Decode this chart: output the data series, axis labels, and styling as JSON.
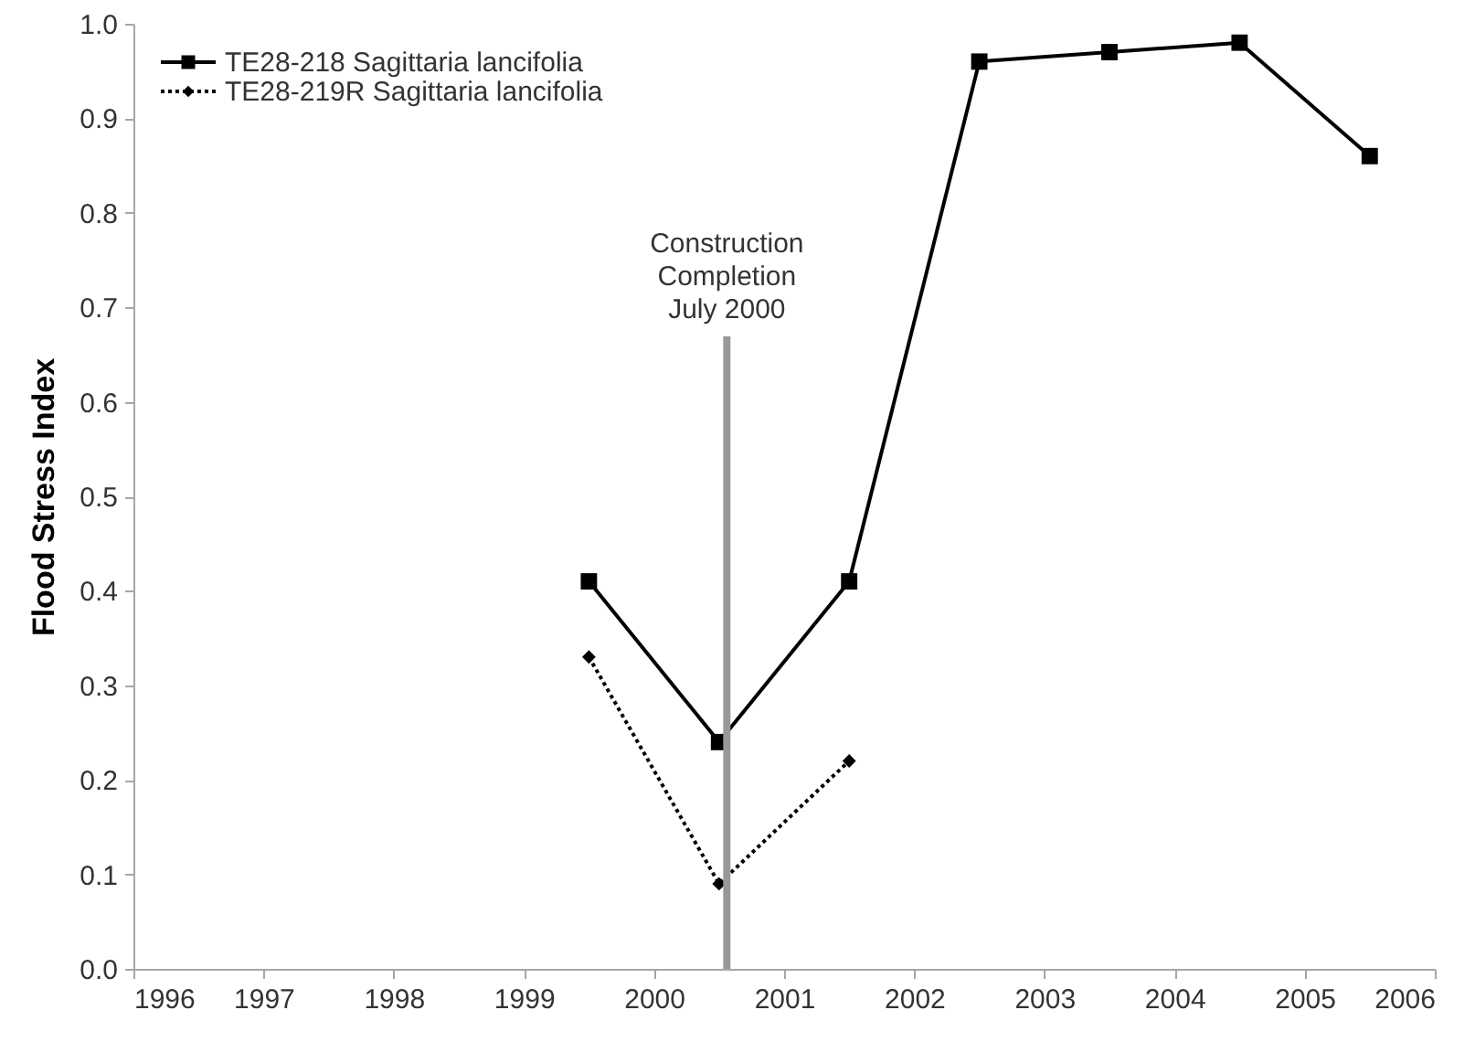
{
  "chart_data": {
    "type": "line",
    "ylabel": "Flood Stress Index",
    "x": [
      1999.5,
      2000.5,
      2001.5,
      2002.5,
      2003.5,
      2004.5,
      2005.5
    ],
    "series": [
      {
        "name": "TE28-218 Sagittaria lancifolia",
        "color": "#000000",
        "marker": "square",
        "line_style": "solid",
        "values": [
          0.41,
          0.24,
          0.41,
          0.96,
          0.97,
          0.98,
          0.86
        ]
      },
      {
        "name": "TE28-219R Sagittaria lancifolia",
        "color": "#000000",
        "marker": "diamond",
        "line_style": "dotted",
        "values": [
          0.33,
          0.09,
          0.22,
          null,
          null,
          null,
          null
        ]
      }
    ],
    "xlim": [
      1996,
      2006
    ],
    "xticks": [
      1996,
      1997,
      1998,
      1999,
      2000,
      2001,
      2002,
      2003,
      2004,
      2005,
      2006
    ],
    "ylim": [
      0.0,
      1.0
    ],
    "yticks": [
      {
        "value": 0,
        "label": "0.0"
      },
      0.1,
      0.2,
      0.3,
      0.4,
      0.5,
      0.6,
      0.7,
      0.8,
      0.9,
      {
        "value": 1,
        "label": "1.0"
      }
    ],
    "ref_lines": [
      {
        "axis": "x",
        "value": 2000.56,
        "label": "Construction\nCompletion\nJuly 2000",
        "color": "#999999"
      }
    ],
    "legend": "top left",
    "grid": false
  }
}
